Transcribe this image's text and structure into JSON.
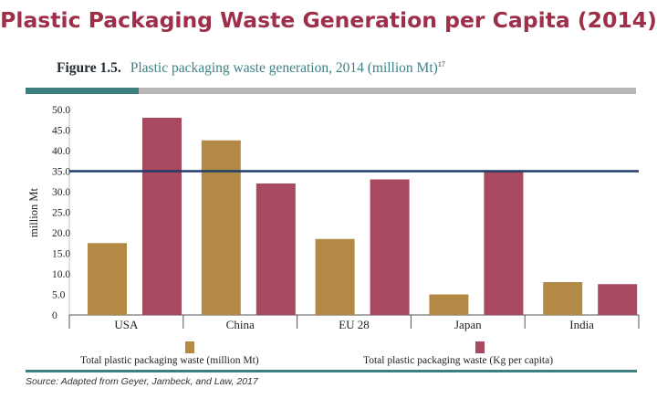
{
  "page_title": "Plastic Packaging Waste Generation per Capita (2014)",
  "figure": {
    "label": "Figure 1.5.",
    "caption": "Plastic packaging waste generation, 2014 (million Mt)",
    "footnote": "17"
  },
  "source": "Source:  Adapted from Geyer, Jambeck, and Law, 2017",
  "colors": {
    "title": "#9e2f48",
    "accent_teal": "#3d7f7f",
    "rule_gray": "#b7b7b7",
    "series_1": "#b28a46",
    "series_2": "#a8495f",
    "reference_line": "#1f3c6b"
  },
  "chart_data": {
    "type": "bar",
    "categories": [
      "USA",
      "China",
      "EU 28",
      "Japan",
      "India"
    ],
    "series": [
      {
        "name": "Total plastic packaging waste (million Mt)",
        "values": [
          17.5,
          42.5,
          18.5,
          5,
          8
        ]
      },
      {
        "name": "Total plastic packaging waste (Kg per capita)",
        "values": [
          48,
          32,
          33,
          35,
          7.5
        ]
      }
    ],
    "ylabel": "million Mt",
    "xlabel": "",
    "yticks": [
      "0",
      "5.0",
      "10.0",
      "15.0",
      "20.0",
      "25.0",
      "30.0",
      "35.0",
      "40.0",
      "45.0",
      "50.0"
    ],
    "ylim": [
      0,
      50
    ],
    "reference_line": 35,
    "grid": false,
    "legend_position": "bottom"
  }
}
